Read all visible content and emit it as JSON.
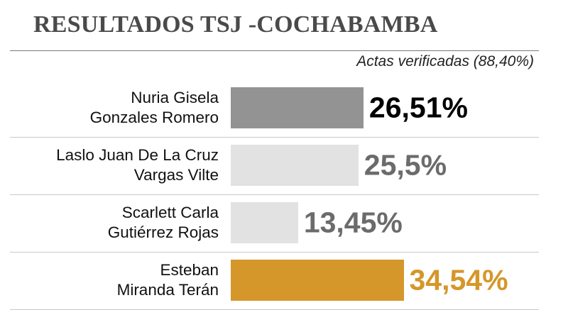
{
  "header": {
    "title": "RESULTADOS TSJ -COCHABAMBA",
    "subtitle": "Actas verificadas (88,40%)"
  },
  "chart_data": {
    "type": "bar",
    "orientation": "horizontal",
    "title": "RESULTADOS TSJ -COCHABAMBA",
    "subtitle": "Actas verificadas (88,40%)",
    "categories": [
      [
        "Nuria Gisela",
        "Gonzales Romero"
      ],
      [
        "Laslo Juan De La Cruz",
        "Vargas Vilte"
      ],
      [
        "Scarlett Carla",
        "Gutiérrez Rojas"
      ],
      [
        "Esteban",
        "Miranda Terán"
      ]
    ],
    "values": [
      26.51,
      25.5,
      13.45,
      34.54
    ],
    "value_labels": [
      "26,51%",
      "25,5%",
      "13,45%",
      "34,54%"
    ],
    "bar_colors": [
      "#939393",
      "#e2e2e2",
      "#e2e2e2",
      "#d5972a"
    ],
    "label_colors": [
      "#000000",
      "#6b6b6b",
      "#6b6b6b",
      "#d5972a"
    ],
    "xlabel": "",
    "ylabel": "",
    "grid": false,
    "legend": "none"
  }
}
